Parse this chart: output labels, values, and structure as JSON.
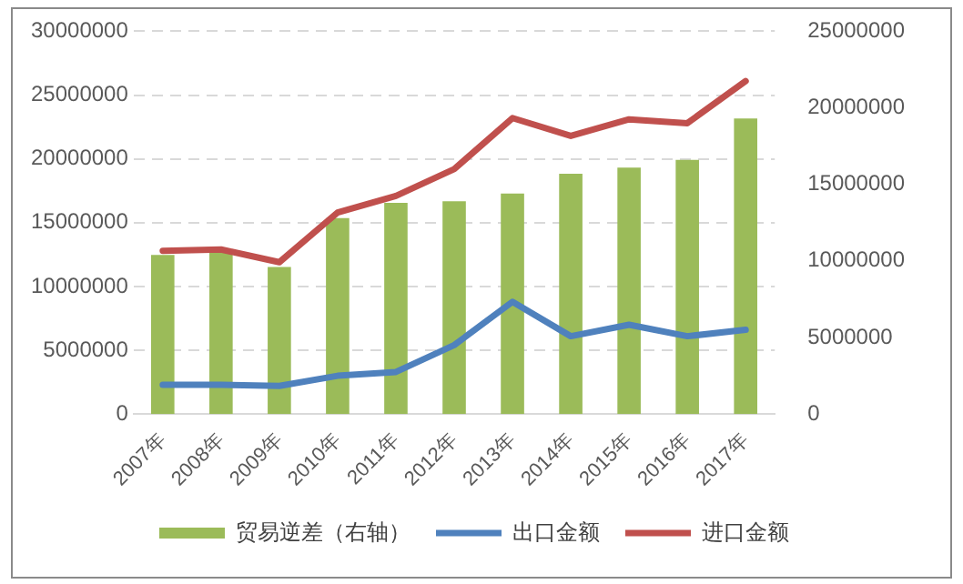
{
  "chart_data": {
    "type": "bar",
    "categories": [
      "2007年",
      "2008年",
      "2009年",
      "2010年",
      "2011年",
      "2012年",
      "2013年",
      "2014年",
      "2015年",
      "2016年",
      "2017年"
    ],
    "series": [
      {
        "name": "贸易逆差（右轴）",
        "axis": "y2",
        "color": "#9bbb59",
        "values": [
          10400000,
          10600000,
          9600000,
          12800000,
          13800000,
          13900000,
          14400000,
          15700000,
          16100000,
          16600000,
          19300000
        ]
      },
      {
        "name": "出口金额",
        "type": "line",
        "color": "#4f81bd",
        "values": [
          2300000,
          2300000,
          2200000,
          3000000,
          3300000,
          5400000,
          8800000,
          6100000,
          7000000,
          6100000,
          6600000
        ]
      },
      {
        "name": "进口金额",
        "type": "line",
        "color": "#c0504d",
        "values": [
          12800000,
          12900000,
          11900000,
          15800000,
          17100000,
          19200000,
          23200000,
          21800000,
          23100000,
          22800000,
          26100000
        ]
      }
    ],
    "ylim": [
      0,
      30000000
    ],
    "yticks": [
      0,
      5000000,
      10000000,
      15000000,
      20000000,
      25000000,
      30000000
    ],
    "y2lim": [
      0,
      25000000
    ],
    "y2ticks": [
      0,
      5000000,
      10000000,
      15000000,
      20000000,
      25000000
    ],
    "grid": "y",
    "legend": "bottom",
    "marker": "none",
    "line_style": "solid"
  }
}
